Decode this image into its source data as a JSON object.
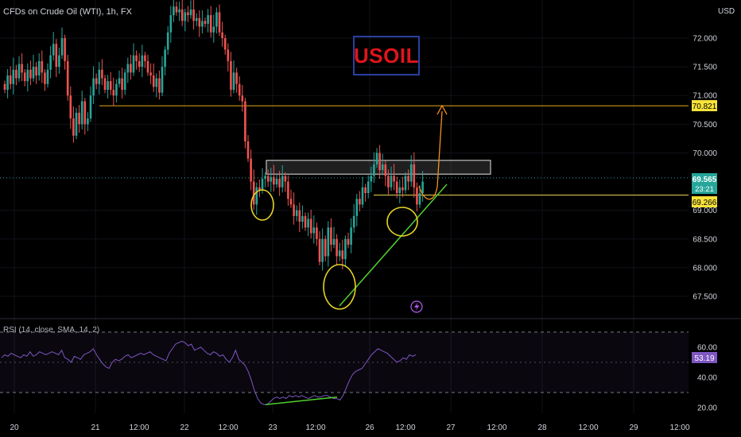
{
  "header": {
    "title": "CFDs on Crude Oil (WTI), 1h, FX",
    "currency": "USD"
  },
  "symbol_label": "USOIL",
  "rsi": {
    "title": "RSI (14, close, SMA, 14, 2)",
    "value_label": "53.19"
  },
  "price_labels": {
    "resistance": "70.821",
    "current": "69.565",
    "countdown": "23:21",
    "support": "69.266"
  },
  "colors": {
    "up": "#26a69a",
    "down": "#ef5350",
    "resistance_line": "#e6a817",
    "support_line": "#e6d24a",
    "trendline": "#4fd12f",
    "projection": "#f5921e",
    "circle": "#e6d424",
    "rsi_line": "#7e57c2",
    "symbol_text": "#e0151b",
    "symbol_border": "#2a3fa0"
  },
  "chart_data": {
    "type": "candlestick",
    "ylim": [
      67.2,
      72.6
    ],
    "price_ticks": [
      "72.000",
      "71.500",
      "71.000",
      "70.500",
      "70.000",
      "69.000",
      "68.500",
      "68.000",
      "67.500"
    ],
    "rsi_ticks": [
      "60.00",
      "40.00",
      "20.00"
    ],
    "x_ticks": [
      "20",
      "21",
      "12:00",
      "22",
      "12:00",
      "23",
      "12:00",
      "26",
      "12:00",
      "27",
      "12:00",
      "28",
      "12:00",
      "29",
      "12:00"
    ],
    "levels": {
      "resistance": 70.821,
      "current": 69.565,
      "support": 69.266
    },
    "supply_zone": {
      "from": 69.63,
      "to": 69.87
    },
    "rsi_level": 53.19,
    "closes": [
      71.1,
      71.35,
      71.2,
      71.45,
      71.3,
      71.55,
      71.4,
      71.25,
      71.45,
      71.3,
      71.5,
      71.35,
      71.6,
      71.4,
      71.2,
      71.45,
      71.7,
      71.9,
      71.5,
      71.7,
      72.0,
      71.6,
      71.0,
      70.6,
      70.3,
      70.7,
      70.5,
      70.9,
      70.5,
      70.6,
      71.0,
      71.3,
      71.2,
      71.45,
      71.3,
      71.1,
      71.25,
      71.1,
      71.0,
      71.2,
      71.3,
      71.1,
      71.4,
      71.55,
      71.4,
      71.7,
      71.6,
      71.5,
      71.7,
      71.6,
      71.4,
      71.35,
      71.15,
      71.3,
      71.05,
      71.5,
      71.8,
      72.1,
      72.4,
      72.55,
      72.45,
      72.5,
      72.3,
      72.45,
      72.4,
      72.5,
      72.3,
      72.35,
      72.2,
      72.3,
      72.25,
      72.4,
      72.1,
      72.2,
      72.45,
      72.1,
      72.0,
      71.8,
      71.6,
      71.1,
      71.4,
      71.2,
      71.0,
      70.9,
      70.2,
      69.9,
      69.5,
      69.1,
      69.4,
      69.35,
      69.55,
      69.6,
      69.5,
      69.58,
      69.45,
      69.55,
      69.4,
      69.6,
      69.5,
      69.2,
      69.1,
      68.9,
      69.0,
      68.8,
      68.9,
      68.7,
      68.85,
      68.6,
      68.7,
      68.5,
      68.1,
      68.5,
      68.2,
      68.7,
      68.4,
      68.5,
      68.2,
      68.3,
      68.15,
      68.5,
      68.4,
      68.7,
      68.9,
      69.2,
      69.1,
      69.4,
      69.3,
      69.5,
      69.6,
      69.8,
      70.0,
      69.7,
      69.8,
      69.6,
      69.4,
      69.6,
      69.5,
      69.3,
      69.4,
      69.35,
      69.6,
      69.5,
      69.8,
      69.4,
      69.1,
      69.3,
      69.5
    ],
    "rsi": [
      53,
      55,
      54,
      56,
      55,
      54,
      53,
      55,
      54,
      57,
      54,
      55,
      57,
      56,
      55,
      56,
      57,
      56,
      55,
      58,
      53,
      52,
      50,
      54,
      53,
      52,
      55,
      56,
      57,
      59,
      55,
      52,
      49,
      47,
      46,
      50,
      52,
      51,
      52,
      54,
      55,
      53,
      54,
      55,
      56,
      55,
      56,
      57,
      55,
      54,
      53,
      52,
      51,
      56,
      59,
      62,
      63,
      64,
      63,
      61,
      62,
      58,
      59,
      60,
      58,
      56,
      55,
      57,
      56,
      54,
      55,
      52,
      50,
      53,
      58,
      52,
      50,
      48,
      44,
      38,
      31,
      26,
      23,
      22,
      22,
      24,
      26,
      27,
      26,
      27,
      26,
      28,
      27,
      28,
      27,
      28,
      27,
      26,
      27,
      28,
      27,
      27,
      28,
      28,
      27,
      26,
      26,
      25,
      28,
      33,
      38,
      42,
      44,
      45,
      46,
      49,
      52,
      55,
      57,
      59,
      58,
      57,
      56,
      54,
      52,
      50,
      51,
      53,
      52,
      55,
      54,
      55
    ]
  }
}
